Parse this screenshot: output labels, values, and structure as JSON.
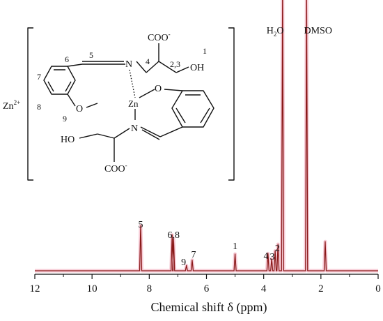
{
  "chart_data": {
    "type": "line",
    "title": "",
    "xlabel": "Chemical shift δ (ppm)",
    "ylabel": "",
    "xlim": [
      12,
      0
    ],
    "x_reversed": true,
    "x_ticks": [
      12,
      10,
      8,
      6,
      4,
      2,
      0
    ],
    "x_tick_labels": [
      "12",
      "10",
      "8",
      "6",
      "4",
      "2",
      "0"
    ],
    "grid": false,
    "colors": {
      "line": "#8b1a1a",
      "halo": "#f0a0b4"
    },
    "series": [
      {
        "peaks": [
          {
            "x": 8.3,
            "height": 0.17
          },
          {
            "x": 7.2,
            "height": 0.135
          },
          {
            "x": 7.15,
            "height": 0.12
          },
          {
            "x": 6.7,
            "height": 0.02
          },
          {
            "x": 6.5,
            "height": 0.04
          },
          {
            "x": 5.0,
            "height": 0.063
          },
          {
            "x": 3.85,
            "height": 0.065
          },
          {
            "x": 3.72,
            "height": 0.045
          },
          {
            "x": 3.6,
            "height": 0.075
          },
          {
            "x": 3.5,
            "height": 0.1
          },
          {
            "x": 3.34,
            "height": 1.2
          },
          {
            "x": 2.5,
            "height": 1.2
          },
          {
            "x": 1.85,
            "height": 0.11
          }
        ]
      }
    ],
    "annotations": [
      {
        "text": "5",
        "x": 8.3
      },
      {
        "text": "6,8",
        "x": 7.15
      },
      {
        "text": "9",
        "x": 6.8
      },
      {
        "text": "7",
        "x": 6.45
      },
      {
        "text": "1",
        "x": 5.0
      },
      {
        "text": "4",
        "x": 3.92
      },
      {
        "text": "3",
        "x": 3.7
      },
      {
        "text": "2",
        "x": 3.52
      },
      {
        "text": "H2O",
        "x": 3.6
      },
      {
        "text": "DMSO",
        "x": 2.1
      }
    ]
  },
  "structure": {
    "metal_ion": "Zn",
    "metal_charge": "2+",
    "atoms": {
      "n_top": "N",
      "n_bottom": "N",
      "o_left": "O",
      "o_right": "O",
      "oh_top": "OH",
      "ho_bottom": "HO",
      "coo_top": "COO",
      "coo_bottom": "COO",
      "coo_charge": "-",
      "zn_center": "Zn"
    },
    "atom_labels": {
      "c1": "1",
      "c23": "2,3",
      "c4": "4",
      "c5": "5",
      "c6": "6",
      "c7": "7",
      "c8": "8",
      "c9": "9"
    }
  }
}
